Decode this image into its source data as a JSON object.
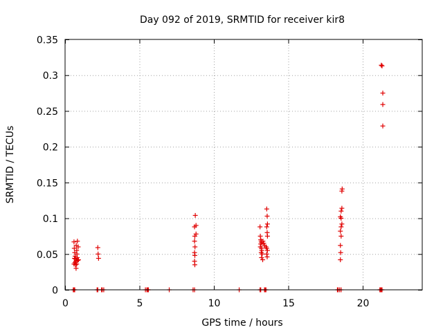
{
  "chart_data": {
    "type": "scatter",
    "title": "Day 092 of 2019, SRMTID for receiver kir8",
    "xlabel": "GPS time / hours",
    "ylabel": "SRMTID / TECUs",
    "xlim": [
      0,
      24
    ],
    "ylim": [
      0,
      0.35
    ],
    "xticks": [
      0,
      5,
      10,
      15,
      20
    ],
    "xtick_labels": [
      "0",
      "5",
      "10",
      "15",
      "20"
    ],
    "yticks": [
      0,
      0.05,
      0.1,
      0.15,
      0.2,
      0.25,
      0.3,
      0.35
    ],
    "ytick_labels": [
      "0",
      "0.05",
      "0.1",
      "0.15",
      "0.2",
      "0.25",
      "0.3",
      "0.35"
    ],
    "grid": true,
    "marker": "+",
    "color": "#e00000",
    "series": [
      {
        "name": "SRMTID",
        "points": [
          [
            0.6,
            0.067
          ],
          [
            0.62,
            0.058
          ],
          [
            0.65,
            0.052
          ],
          [
            0.68,
            0.047
          ],
          [
            0.7,
            0.043
          ],
          [
            0.72,
            0.04
          ],
          [
            0.66,
            0.038
          ],
          [
            0.75,
            0.062
          ],
          [
            0.78,
            0.055
          ],
          [
            0.8,
            0.05
          ],
          [
            0.82,
            0.045
          ],
          [
            0.85,
            0.041
          ],
          [
            0.78,
            0.036
          ],
          [
            0.74,
            0.03
          ],
          [
            0.88,
            0.06
          ],
          [
            0.9,
            0.042
          ],
          [
            0.7,
            0.035
          ],
          [
            0.83,
            0.068
          ],
          [
            0.6,
            0.036
          ],
          [
            0.63,
            0.044
          ],
          [
            2.2,
            0.059
          ],
          [
            2.22,
            0.05
          ],
          [
            2.25,
            0.044
          ],
          [
            8.7,
            0.088
          ],
          [
            8.72,
            0.075
          ],
          [
            8.7,
            0.068
          ],
          [
            8.73,
            0.06
          ],
          [
            8.7,
            0.052
          ],
          [
            8.72,
            0.048
          ],
          [
            8.7,
            0.04
          ],
          [
            8.72,
            0.035
          ],
          [
            8.75,
            0.104
          ],
          [
            8.8,
            0.09
          ],
          [
            8.8,
            0.078
          ],
          [
            13.1,
            0.088
          ],
          [
            13.12,
            0.075
          ],
          [
            13.15,
            0.07
          ],
          [
            13.18,
            0.068
          ],
          [
            13.2,
            0.066
          ],
          [
            13.15,
            0.064
          ],
          [
            13.12,
            0.06
          ],
          [
            13.2,
            0.058
          ],
          [
            13.22,
            0.055
          ],
          [
            13.18,
            0.052
          ],
          [
            13.25,
            0.05
          ],
          [
            13.2,
            0.045
          ],
          [
            13.28,
            0.042
          ],
          [
            13.3,
            0.068
          ],
          [
            13.35,
            0.065
          ],
          [
            13.4,
            0.062
          ],
          [
            13.5,
            0.06
          ],
          [
            13.55,
            0.058
          ],
          [
            13.6,
            0.055
          ],
          [
            13.55,
            0.05
          ],
          [
            13.58,
            0.046
          ],
          [
            13.55,
            0.113
          ],
          [
            13.58,
            0.103
          ],
          [
            13.6,
            0.092
          ],
          [
            13.55,
            0.088
          ],
          [
            13.58,
            0.08
          ],
          [
            13.6,
            0.075
          ],
          [
            18.5,
            0.042
          ],
          [
            18.52,
            0.052
          ],
          [
            18.5,
            0.062
          ],
          [
            18.55,
            0.075
          ],
          [
            18.5,
            0.082
          ],
          [
            18.55,
            0.088
          ],
          [
            18.6,
            0.092
          ],
          [
            18.55,
            0.1
          ],
          [
            18.5,
            0.102
          ],
          [
            18.55,
            0.11
          ],
          [
            18.6,
            0.114
          ],
          [
            18.6,
            0.138
          ],
          [
            18.62,
            0.141
          ],
          [
            21.25,
            0.314
          ],
          [
            21.3,
            0.313
          ],
          [
            21.35,
            0.275
          ],
          [
            21.35,
            0.259
          ],
          [
            21.35,
            0.229
          ],
          [
            0.55,
            0
          ],
          [
            0.6,
            0
          ],
          [
            0.65,
            0
          ],
          [
            2.15,
            0
          ],
          [
            2.2,
            0
          ],
          [
            2.45,
            0
          ],
          [
            2.5,
            0
          ],
          [
            2.6,
            0
          ],
          [
            5.4,
            0
          ],
          [
            5.5,
            0
          ],
          [
            5.55,
            0
          ],
          [
            5.6,
            0
          ],
          [
            7.0,
            0
          ],
          [
            8.6,
            0
          ],
          [
            8.7,
            0
          ],
          [
            11.7,
            0
          ],
          [
            13.1,
            0
          ],
          [
            13.15,
            0
          ],
          [
            13.4,
            0
          ],
          [
            13.45,
            0
          ],
          [
            13.5,
            0
          ],
          [
            18.3,
            0
          ],
          [
            18.35,
            0
          ],
          [
            18.45,
            0
          ],
          [
            18.55,
            0
          ],
          [
            21.15,
            0
          ],
          [
            21.2,
            0
          ],
          [
            21.25,
            0
          ],
          [
            21.3,
            0
          ]
        ]
      }
    ]
  }
}
